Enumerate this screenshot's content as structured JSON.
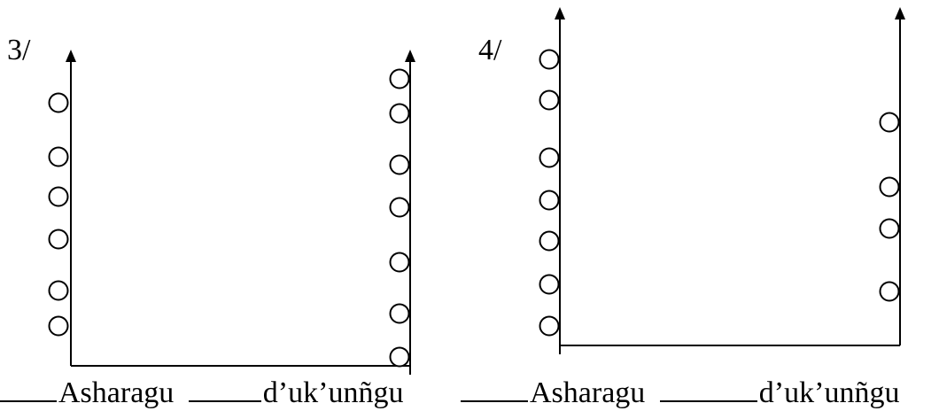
{
  "problems": [
    {
      "number": "3/",
      "left_label": "Asharagu",
      "right_label": "d’uk’unñgu",
      "left_count": 6,
      "right_count": 7
    },
    {
      "number": "4/",
      "left_label": "Asharagu",
      "right_label": "d’uk’unñgu",
      "left_count": 7,
      "right_count": 4
    }
  ],
  "colors": {
    "ink": "#000000",
    "background": "#ffffff"
  }
}
